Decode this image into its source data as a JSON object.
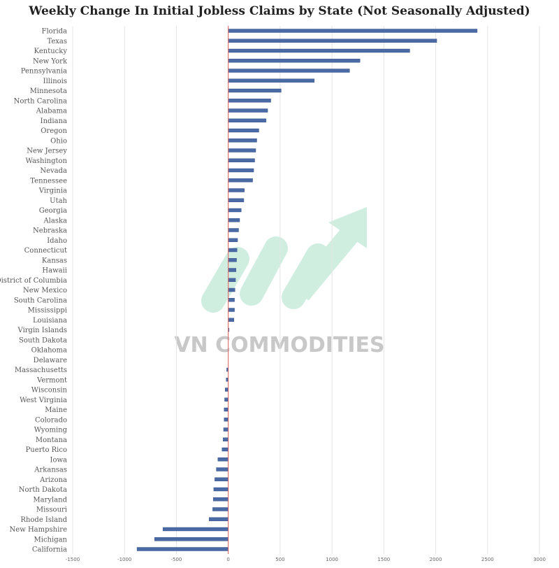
{
  "title": "Weekly Change In Initial Jobless Claims by State (Not Seasonally Adjusted)",
  "watermark": "VN COMMODITIES",
  "colors": {
    "bar": "#4a6aa5",
    "bar_edge": "#2f4a80",
    "zero_line": "#e06060",
    "grid": "#e4e4e4",
    "watermark_text": "#c8c8c8",
    "watermark_arrow": "#cfeee0"
  },
  "chart_data": {
    "type": "bar",
    "orientation": "horizontal",
    "categories": [
      "Florida",
      "Texas",
      "Kentucky",
      "New York",
      "Pennsylvania",
      "Illinois",
      "Minnesota",
      "North Carolina",
      "Alabama",
      "Indiana",
      "Oregon",
      "Ohio",
      "New Jersey",
      "Washington",
      "Nevada",
      "Tennessee",
      "Virginia",
      "Utah",
      "Georgia",
      "Alaska",
      "Nebraska",
      "Idaho",
      "Connecticut",
      "Kansas",
      "Hawaii",
      "District of Columbia",
      "New Mexico",
      "South Carolina",
      "Mississippi",
      "Louisiana",
      "Virgin Islands",
      "South Dakota",
      "Oklahoma",
      "Delaware",
      "Massachusetts",
      "Vermont",
      "Wisconsin",
      "West Virginia",
      "Maine",
      "Colorado",
      "Wyoming",
      "Montana",
      "Puerto Rico",
      "Iowa",
      "Arkansas",
      "Arizona",
      "North Dakota",
      "Maryland",
      "Missouri",
      "Rhode Island",
      "New Hampshire",
      "Michigan",
      "California"
    ],
    "values": [
      2400,
      2010,
      1750,
      1270,
      1170,
      830,
      510,
      410,
      380,
      365,
      295,
      275,
      265,
      255,
      245,
      235,
      155,
      150,
      125,
      110,
      100,
      90,
      85,
      80,
      75,
      70,
      65,
      60,
      60,
      55,
      5,
      0,
      0,
      0,
      -15,
      -20,
      -30,
      -35,
      -40,
      -40,
      -45,
      -50,
      -60,
      -100,
      -115,
      -130,
      -140,
      -145,
      -150,
      -185,
      -630,
      -710,
      -880
    ],
    "xlim": [
      -1500,
      3000
    ],
    "xticks": [
      -1500,
      -1000,
      -500,
      0,
      500,
      1000,
      1500,
      2000,
      2500,
      3000
    ],
    "xtick_labels": [
      "-1500",
      "-1000",
      "-500",
      "0",
      "500",
      "1000",
      "1500",
      "2000",
      "2500",
      "3000"
    ],
    "grid": "vertical",
    "legend": "none"
  }
}
